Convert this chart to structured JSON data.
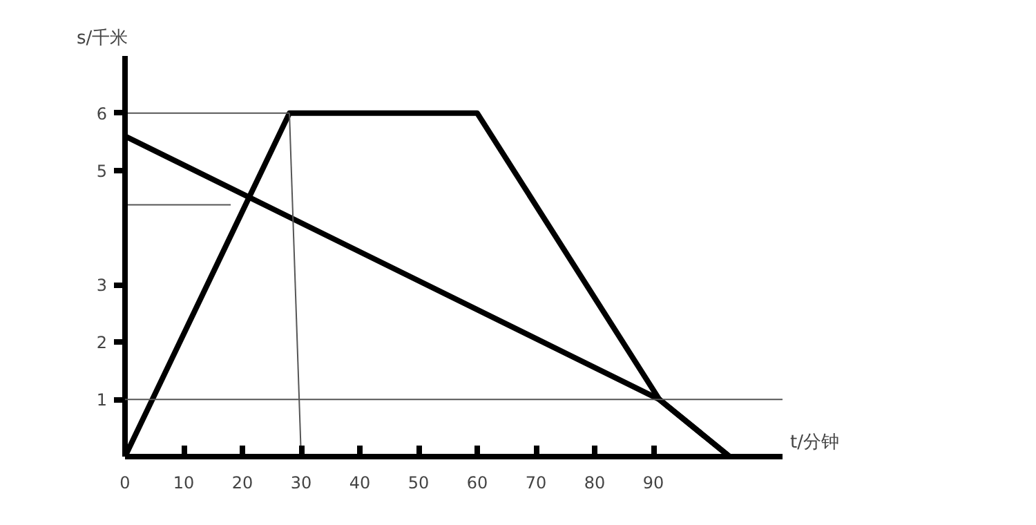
{
  "chart_data": {
    "type": "line",
    "xlabel": "t/分钟",
    "ylabel": "s/千米",
    "xlim": [
      0,
      112
    ],
    "ylim": [
      0,
      7
    ],
    "xticks": [
      0,
      10,
      20,
      30,
      40,
      50,
      60,
      70,
      80,
      90
    ],
    "yticks": [
      1,
      2,
      3,
      5,
      6
    ],
    "grid": false,
    "marker": "none",
    "line_style": "solid",
    "series": [
      {
        "color": "#000000",
        "x": [
          0,
          28,
          60,
          91,
          103
        ],
        "values": [
          0,
          6,
          6,
          1,
          0
        ]
      },
      {
        "color": "#000000",
        "x": [
          0,
          91,
          103
        ],
        "values": [
          5.6,
          1,
          0
        ]
      },
      {
        "color": "#555555",
        "x": [
          0,
          28
        ],
        "values": [
          6,
          6
        ]
      },
      {
        "color": "#555555",
        "x": [
          0,
          18
        ],
        "values": [
          4.4,
          4.4
        ]
      },
      {
        "color": "#555555",
        "x": [
          28,
          30
        ],
        "values": [
          6,
          0
        ]
      }
    ],
    "ref_lines": [
      {
        "axis": "y",
        "value": 1,
        "color": "#555555"
      }
    ]
  }
}
